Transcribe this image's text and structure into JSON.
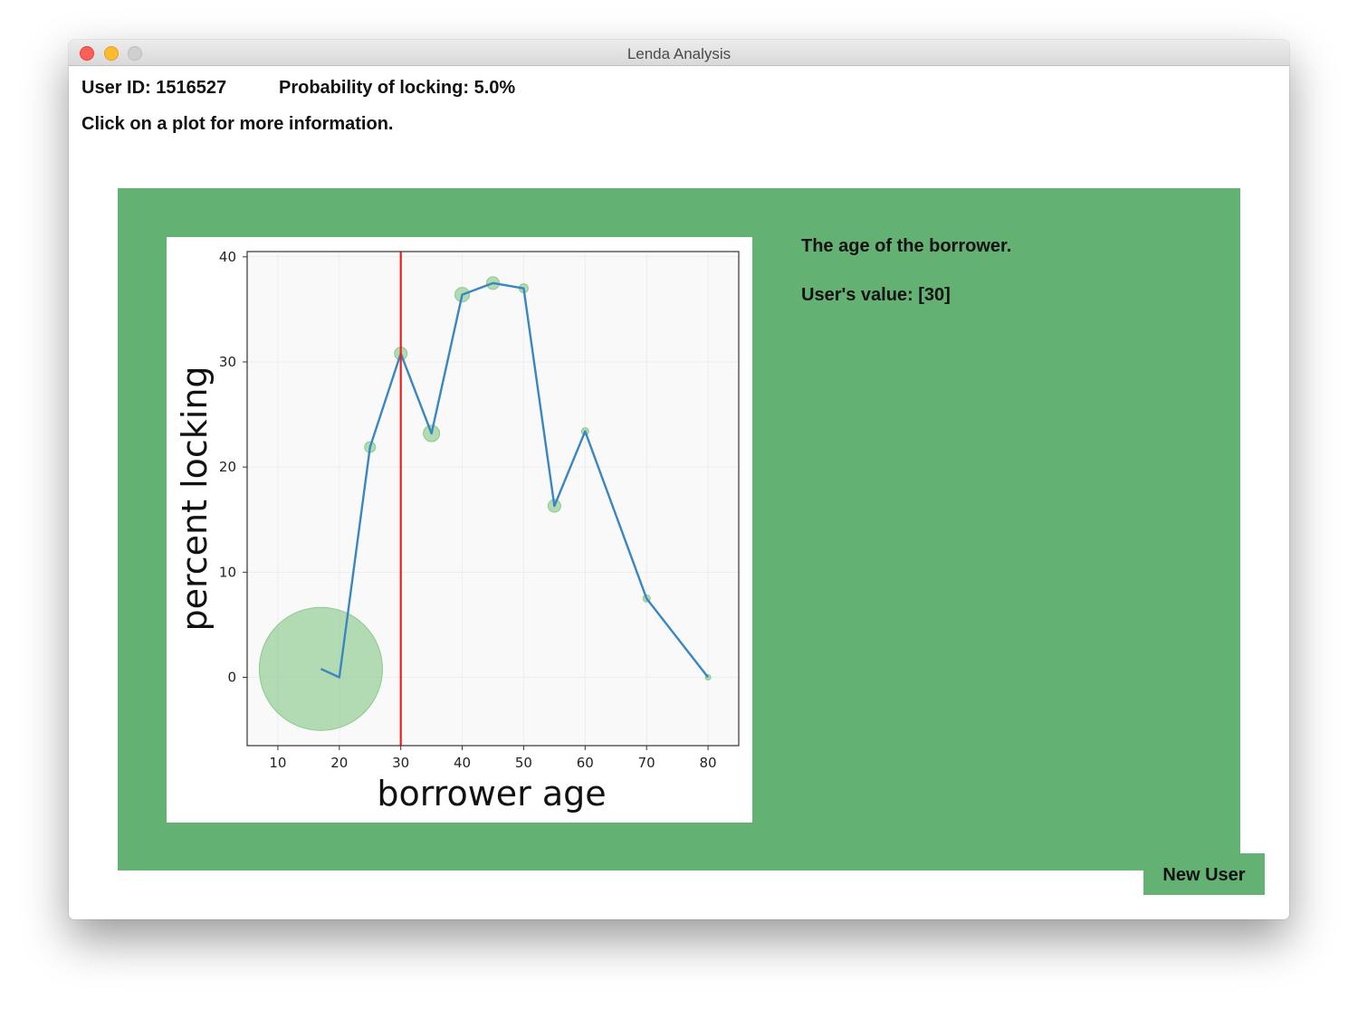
{
  "window": {
    "title": "Lenda Analysis"
  },
  "header": {
    "user_id": "User ID: 1516527",
    "probability": "Probability of locking: 5.0%",
    "instruction": "Click on a plot for more information."
  },
  "detail": {
    "description": "The age of the borrower.",
    "user_value": "User's value: [30]"
  },
  "buttons": {
    "new_user": "New User"
  },
  "colors": {
    "panel_green": "#63b274",
    "line_blue": "#3a86c0",
    "marker_green": "#8cc98d",
    "user_line_red": "#e8221a"
  },
  "chart_data": {
    "type": "line",
    "title": "",
    "xlabel": "borrower age",
    "ylabel": "percent locking",
    "xlim": [
      5,
      85
    ],
    "ylim": [
      -6.5,
      40.5
    ],
    "xticks": [
      10,
      20,
      30,
      40,
      50,
      60,
      70,
      80
    ],
    "yticks": [
      0,
      10,
      20,
      30,
      40
    ],
    "x": [
      17,
      20,
      25,
      30,
      35,
      40,
      45,
      50,
      55,
      60,
      70,
      80
    ],
    "y": [
      0.8,
      0,
      21.9,
      30.8,
      23.2,
      36.4,
      37.5,
      37.0,
      16.3,
      23.4,
      7.5,
      0
    ],
    "marker_size": [
      68,
      1,
      6,
      7,
      9,
      8,
      7,
      5,
      7,
      4,
      4,
      3
    ],
    "user_value_line": {
      "x": 30
    }
  }
}
